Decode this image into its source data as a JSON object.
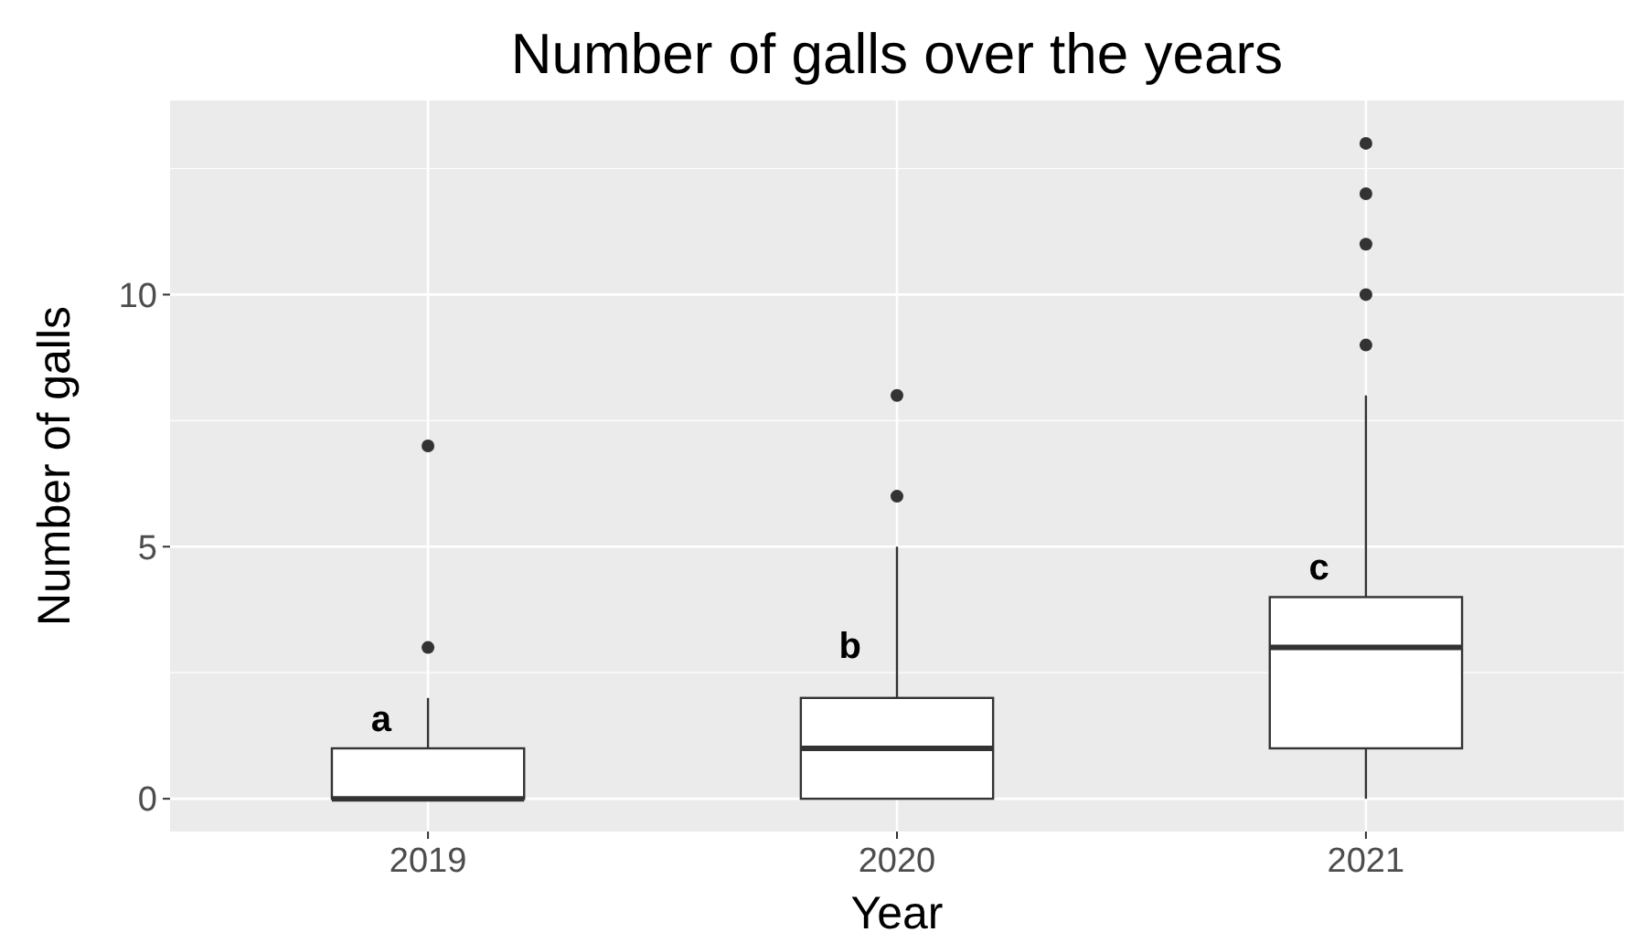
{
  "chart_data": {
    "type": "box",
    "title": "Number of galls over the years",
    "xlabel": "Year",
    "ylabel": "Number of galls",
    "categories": [
      "2019",
      "2020",
      "2021"
    ],
    "boxes": [
      {
        "q1": 0,
        "median": 0,
        "q3": 1,
        "high": 2,
        "outliers": [
          3,
          7
        ]
      },
      {
        "q1": 0,
        "median": 1,
        "q3": 2,
        "high": 5,
        "outliers": [
          6,
          8
        ]
      },
      {
        "low": 0,
        "q1": 1,
        "median": 3,
        "q3": 4,
        "high": 8,
        "outliers": [
          9,
          10,
          11,
          12,
          13
        ]
      }
    ],
    "ylim": [
      -0.65,
      13.85
    ],
    "yticks": [
      0,
      5,
      10
    ],
    "grid": true,
    "annotations": [
      {
        "text": "a",
        "x": "2019",
        "y": 1.6
      },
      {
        "text": "b",
        "x": "2020",
        "y": 3.05
      },
      {
        "text": "c",
        "x": "2021",
        "y": 4.6
      }
    ]
  }
}
